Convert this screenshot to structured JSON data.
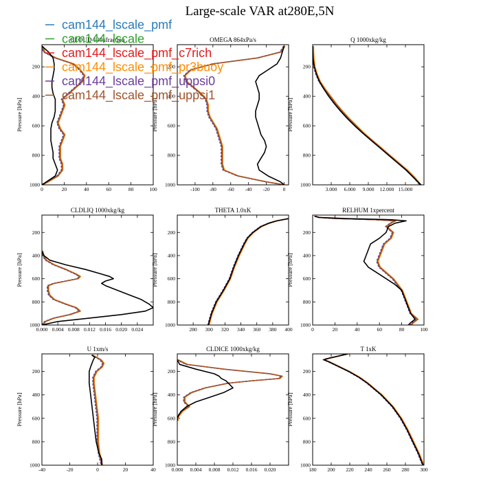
{
  "page_title": "Large-scale VAR at280E,5N",
  "legend": [
    {
      "name": "cam144_lscale_pmf",
      "color": "#2b7bb9"
    },
    {
      "name": "cam144_lscale",
      "color": "#2ca02c"
    },
    {
      "name": "cam144_lscale_pmf_c7rich",
      "color": "#e41a1c"
    },
    {
      "name": "cam144_lscale_pmf_pr3buoy",
      "color": "#ff8c00"
    },
    {
      "name": "cam144_lscale_pmf_uppsi0",
      "color": "#6a3d9a"
    },
    {
      "name": "cam144_lscale_pmf_uppsi1",
      "color": "#a0522d"
    }
  ],
  "control_color": "#000000",
  "chart_data": [
    {
      "type": "line",
      "title": "CLOUD  100xfraction",
      "ylabel": "Pressure [hPa]",
      "ylim": [
        1000,
        50
      ],
      "xlim": [
        0,
        100
      ],
      "xticks": [
        "0",
        "20",
        "40",
        "60",
        "80",
        "100"
      ],
      "xtick_values": [
        0,
        20,
        40,
        60,
        80,
        100
      ],
      "yticks": [
        "200",
        "400",
        "600",
        "800",
        "1000"
      ],
      "y": [
        60,
        100,
        140,
        180,
        220,
        260,
        300,
        340,
        380,
        420,
        460,
        500,
        540,
        580,
        620,
        660,
        700,
        740,
        780,
        820,
        860,
        900,
        940,
        980,
        1000
      ],
      "control": [
        0,
        6,
        10,
        11,
        11,
        10,
        9,
        9,
        10,
        12,
        12,
        12,
        11,
        9,
        8,
        8,
        8,
        9,
        10,
        10,
        12,
        14,
        12,
        4,
        0
      ],
      "series": [
        0,
        2,
        12,
        28,
        34,
        38,
        36,
        30,
        24,
        18,
        20,
        18,
        16,
        14,
        16,
        20,
        18,
        16,
        16,
        16,
        18,
        18,
        14,
        5,
        0
      ]
    },
    {
      "type": "line",
      "title": "OMEGA  864xPa/s",
      "ylabel": "Pressure [hPa]",
      "ylim": [
        1000,
        50
      ],
      "xlim": [
        -120,
        5
      ],
      "xticks": [
        "-100",
        "-80",
        "-60",
        "-40",
        "-20",
        "0"
      ],
      "xtick_values": [
        -100,
        -80,
        -60,
        -40,
        -20,
        0
      ],
      "yticks": [
        "200",
        "400",
        "600",
        "800",
        "1000"
      ],
      "y": [
        60,
        100,
        140,
        180,
        220,
        260,
        300,
        340,
        380,
        420,
        460,
        500,
        540,
        580,
        620,
        660,
        700,
        740,
        780,
        820,
        860,
        900,
        940,
        980,
        1000
      ],
      "control": [
        0,
        -2,
        -4,
        -8,
        -18,
        -28,
        -32,
        -30,
        -28,
        -28,
        -30,
        -32,
        -32,
        -30,
        -28,
        -26,
        -22,
        -20,
        -22,
        -26,
        -30,
        -28,
        -18,
        -4,
        0
      ],
      "series": [
        0,
        -4,
        -30,
        -80,
        -105,
        -112,
        -110,
        -102,
        -94,
        -88,
        -86,
        -86,
        -84,
        -80,
        -76,
        -74,
        -72,
        -70,
        -70,
        -70,
        -70,
        -68,
        -52,
        -20,
        0
      ]
    },
    {
      "type": "line",
      "title": "Q  1000xkg/kg",
      "ylabel": "Pressure [hPa]",
      "ylim": [
        1000,
        50
      ],
      "xlim": [
        0,
        18
      ],
      "xticks": [
        "3.000",
        "6.000",
        "9.000",
        "12.000",
        "15.000"
      ],
      "xtick_values": [
        3,
        6,
        9,
        12,
        15
      ],
      "yticks": [
        "200",
        "400",
        "600",
        "800",
        "1000"
      ],
      "y": [
        60,
        100,
        150,
        200,
        250,
        300,
        350,
        400,
        450,
        500,
        550,
        600,
        650,
        700,
        750,
        800,
        850,
        900,
        950,
        1000
      ],
      "control": [
        0,
        0.02,
        0.08,
        0.25,
        0.6,
        1.1,
        1.8,
        2.6,
        3.5,
        4.5,
        5.6,
        6.8,
        8.1,
        9.5,
        10.9,
        12.3,
        13.7,
        15.1,
        16.3,
        17.5
      ],
      "series": [
        0,
        0.02,
        0.08,
        0.25,
        0.6,
        1.1,
        1.9,
        2.8,
        3.7,
        4.7,
        5.8,
        7.0,
        8.2,
        9.6,
        11.0,
        12.4,
        13.8,
        15.2,
        16.4,
        17.4
      ]
    },
    {
      "type": "line",
      "title": "CLDLIQ  1000xkg/kg",
      "ylabel": "Pressure [hPa]",
      "ylim": [
        1000,
        50
      ],
      "xlim": [
        0,
        0.028
      ],
      "xticks": [
        "0.000",
        "0.004",
        "0.008",
        "0.012",
        "0.016",
        "0.020",
        "0.024"
      ],
      "xtick_values": [
        0,
        0.004,
        0.008,
        0.012,
        0.016,
        0.02,
        0.024
      ],
      "yticks": [
        "200",
        "400",
        "600",
        "800",
        "1000"
      ],
      "y": [
        360,
        400,
        440,
        480,
        520,
        560,
        580,
        600,
        620,
        640,
        660,
        700,
        740,
        780,
        820,
        850,
        880,
        910,
        940,
        970,
        1000
      ],
      "control": [
        0,
        0.0005,
        0.002,
        0.006,
        0.011,
        0.015,
        0.017,
        0.018,
        0.016,
        0.015,
        0.016,
        0.019,
        0.022,
        0.025,
        0.027,
        0.028,
        0.026,
        0.02,
        0.012,
        0.004,
        0
      ],
      "series": [
        0,
        0.0003,
        0.001,
        0.003,
        0.006,
        0.0085,
        0.0095,
        0.009,
        0.006,
        0.003,
        0.0015,
        0.0015,
        0.0018,
        0.003,
        0.006,
        0.0085,
        0.0095,
        0.007,
        0.003,
        0.0008,
        0
      ]
    },
    {
      "type": "line",
      "title": "THETA  1.0xK",
      "ylabel": "Pressure [hPa]",
      "ylim": [
        1000,
        50
      ],
      "xlim": [
        260,
        400
      ],
      "xticks": [
        "280",
        "300",
        "320",
        "340",
        "360",
        "380",
        "400"
      ],
      "xtick_values": [
        280,
        300,
        320,
        340,
        360,
        380,
        400
      ],
      "yticks": [
        "200",
        "400",
        "600",
        "800",
        "1000"
      ],
      "y": [
        80,
        100,
        120,
        150,
        200,
        250,
        300,
        400,
        500,
        600,
        700,
        800,
        900,
        1000
      ],
      "control": [
        400,
        385,
        375,
        365,
        355,
        348,
        344,
        337,
        331,
        326,
        318,
        309,
        303,
        299
      ],
      "series": [
        400,
        385,
        375,
        365,
        355,
        348,
        344,
        337,
        331,
        326,
        318,
        309,
        303,
        299
      ]
    },
    {
      "type": "line",
      "title": "RELHUM  1xpercent",
      "ylabel": "Pressure [hPa]",
      "ylim": [
        1000,
        50
      ],
      "xlim": [
        0,
        100
      ],
      "xticks": [
        "0",
        "20",
        "40",
        "60",
        "80",
        "100"
      ],
      "xtick_values": [
        0,
        20,
        40,
        60,
        80,
        100
      ],
      "yticks": [
        "200",
        "400",
        "600",
        "800",
        "1000"
      ],
      "y": [
        60,
        70,
        80,
        90,
        100,
        120,
        150,
        200,
        250,
        300,
        350,
        400,
        450,
        500,
        550,
        600,
        650,
        700,
        750,
        800,
        850,
        900,
        950,
        980,
        1000
      ],
      "control": [
        2,
        6,
        30,
        70,
        84,
        74,
        68,
        66,
        60,
        52,
        50,
        48,
        46,
        50,
        58,
        66,
        74,
        80,
        82,
        84,
        86,
        88,
        92,
        88,
        86
      ],
      "series": [
        2,
        5,
        20,
        55,
        74,
        70,
        66,
        72,
        70,
        64,
        62,
        60,
        58,
        60,
        66,
        72,
        76,
        80,
        82,
        84,
        86,
        88,
        94,
        90,
        88
      ]
    },
    {
      "type": "line",
      "title": "U  1xm/s",
      "ylabel": "Pressure [hPa]",
      "ylim": [
        1000,
        50
      ],
      "xlim": [
        -40,
        40
      ],
      "xticks": [
        "-40",
        "-20",
        "0",
        "20",
        "40"
      ],
      "xtick_values": [
        -40,
        -20,
        0,
        20,
        40
      ],
      "yticks": [
        "200",
        "400",
        "600",
        "800",
        "1000"
      ],
      "y": [
        60,
        80,
        100,
        130,
        160,
        200,
        250,
        300,
        400,
        500,
        600,
        700,
        800,
        900,
        950,
        1000
      ],
      "control": [
        -4,
        -2,
        -3,
        -4,
        -5,
        -6,
        -6,
        -6,
        -5,
        -4,
        -3,
        -2,
        -1,
        1,
        3,
        3
      ],
      "series": [
        -4,
        -1,
        2,
        4,
        3,
        -1,
        -3,
        -3,
        -2,
        -1,
        0,
        0,
        0,
        1,
        2,
        3
      ]
    },
    {
      "type": "line",
      "title": "CLDICE  1000xkg/kg",
      "ylabel": "Pressure [hPa]",
      "ylim": [
        1000,
        50
      ],
      "xlim": [
        0,
        0.024
      ],
      "xticks": [
        "0.000",
        "0.004",
        "0.008",
        "0.012",
        "0.016",
        "0.020"
      ],
      "xtick_values": [
        0,
        0.004,
        0.008,
        0.012,
        0.016,
        0.02
      ],
      "yticks": [
        "200",
        "400",
        "600",
        "800",
        "1000"
      ],
      "y": [
        100,
        140,
        180,
        220,
        240,
        260,
        280,
        300,
        340,
        380,
        420,
        460,
        500,
        540,
        580,
        600,
        620
      ],
      "control": [
        0,
        0.0005,
        0.004,
        0.008,
        0.009,
        0.0095,
        0.0105,
        0.011,
        0.012,
        0.01,
        0.007,
        0.004,
        0.002,
        0.0008,
        0.0002,
        0,
        0
      ],
      "series": [
        0,
        0.002,
        0.01,
        0.02,
        0.0225,
        0.022,
        0.016,
        0.011,
        0.006,
        0.003,
        0.0015,
        0.0015,
        0.0025,
        0.001,
        0.0002,
        0,
        0
      ]
    },
    {
      "type": "line",
      "title": "T  1xK",
      "ylabel": "Pressure [hPa]",
      "ylim": [
        1000,
        50
      ],
      "xlim": [
        180,
        300
      ],
      "xticks": [
        "180",
        "200",
        "220",
        "240",
        "260",
        "280",
        "300"
      ],
      "xtick_values": [
        180,
        200,
        220,
        240,
        260,
        280,
        300
      ],
      "yticks": [
        "200",
        "400",
        "600",
        "800",
        "1000"
      ],
      "y": [
        50,
        70,
        90,
        100,
        120,
        150,
        200,
        250,
        300,
        400,
        500,
        600,
        700,
        800,
        900,
        1000
      ],
      "control": [
        218,
        207,
        196,
        192,
        198,
        206,
        219,
        230,
        239,
        254,
        266,
        275,
        282,
        288,
        294,
        299
      ],
      "series": [
        218,
        207,
        196,
        192,
        198,
        206,
        219,
        230,
        239,
        254,
        266,
        275,
        282,
        288,
        294,
        299
      ]
    }
  ]
}
